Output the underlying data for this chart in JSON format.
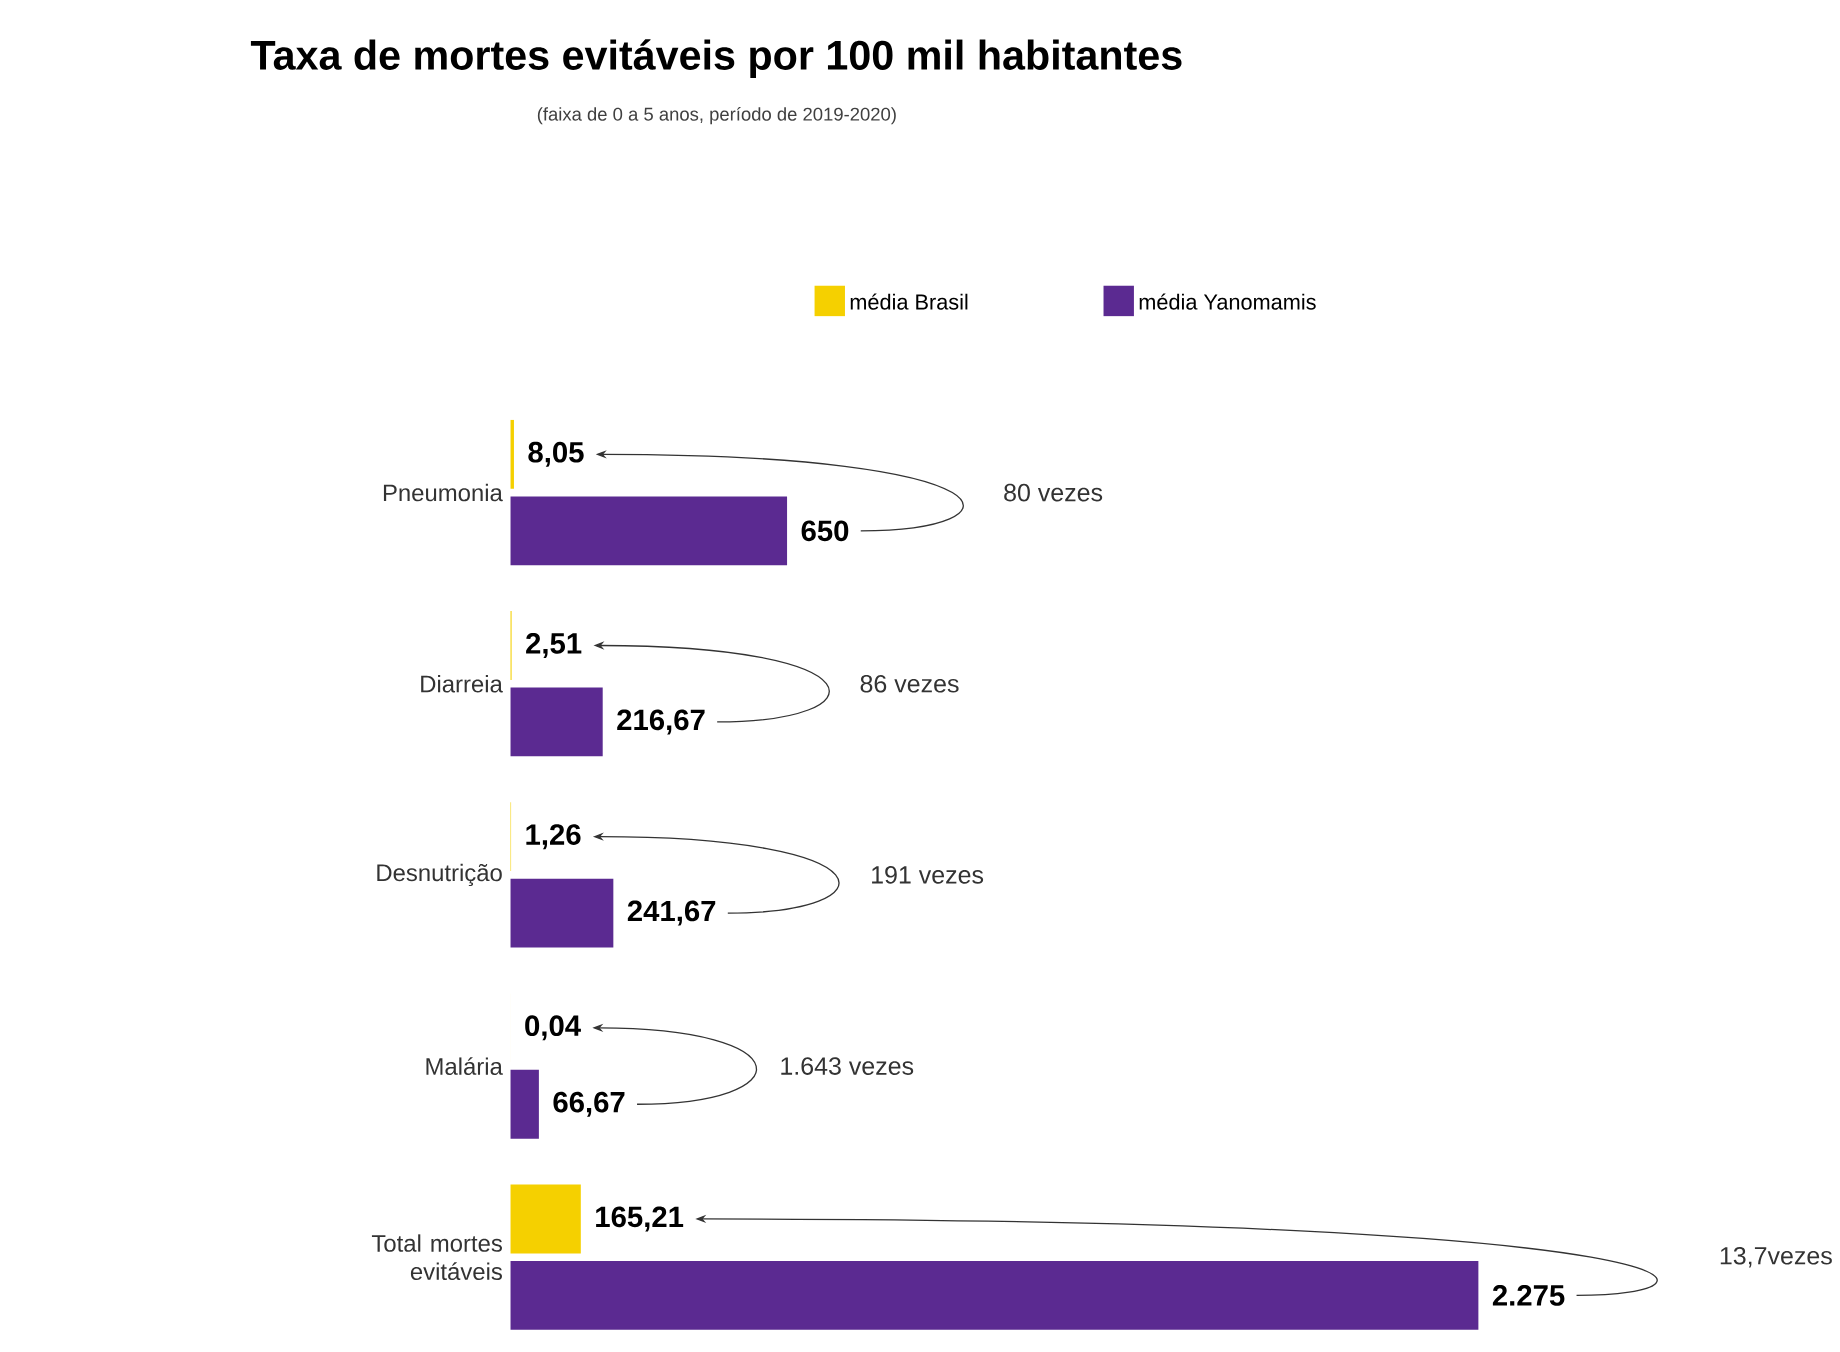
{
  "chart_data": {
    "type": "bar",
    "orientation": "horizontal",
    "title": "Taxa de mortes evitáveis por 100 mil habitantes",
    "subtitle": "(faixa de 0 a 5 anos, período de 2019-2020)",
    "categories": [
      "Pneumonia",
      "Diarreia",
      "Desnutrição",
      "Malária",
      "Total mortes evitáveis"
    ],
    "series": [
      {
        "name": "média Brasil",
        "color": "#f5d000",
        "values": [
          8.05,
          2.51,
          1.26,
          0.04,
          165.21
        ],
        "value_labels": [
          "8,05",
          "2,51",
          "1,26",
          "0,04",
          "165,21"
        ]
      },
      {
        "name": "média Yanomamis",
        "color": "#5b2a91",
        "values": [
          650,
          216.67,
          241.67,
          66.67,
          2275
        ],
        "value_labels": [
          "650",
          "216,67",
          "241,67",
          "66,67",
          "2.275"
        ]
      }
    ],
    "annotations": [
      "80 vezes",
      "86 vezes",
      "191 vezes",
      "1.643 vezes",
      "13,7vezes"
    ],
    "legend": "top",
    "tick_labels": "y"
  }
}
